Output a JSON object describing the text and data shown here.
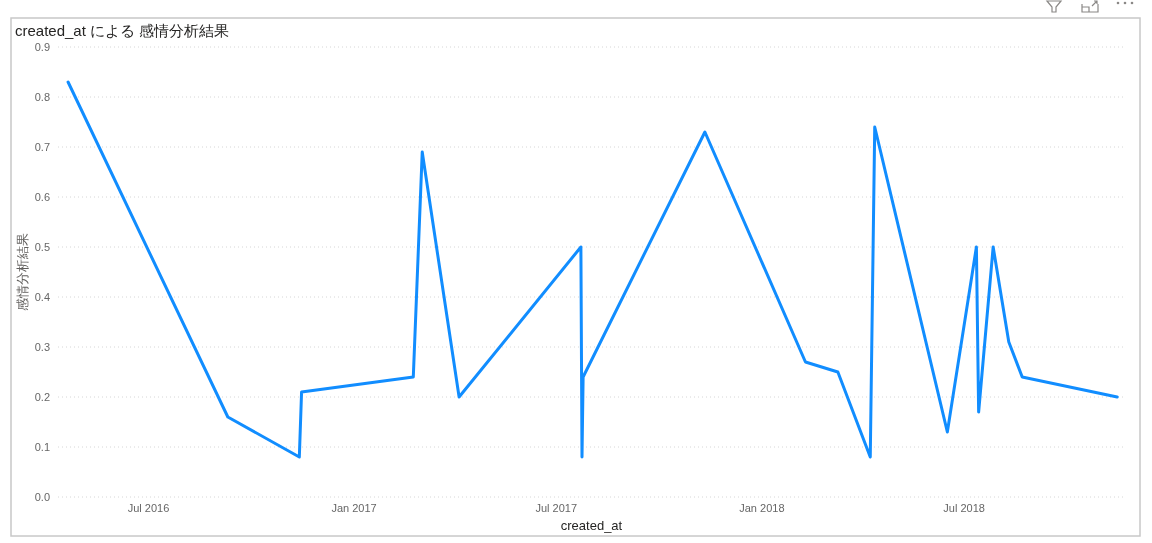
{
  "chart_data": {
    "type": "line",
    "title": "created_at による 感情分析結果",
    "xlabel": "created_at",
    "ylabel": "感情分析結果",
    "x": [
      "2016-04-20",
      "2016-09-10",
      "2016-11-13",
      "2016-11-15",
      "2017-02-23",
      "2017-03-03",
      "2017-04-05",
      "2017-07-23",
      "2017-07-24",
      "2017-07-25",
      "2017-11-11",
      "2018-02-09",
      "2018-03-10",
      "2018-04-08",
      "2018-04-12",
      "2018-06-16",
      "2018-07-12",
      "2018-07-14",
      "2018-07-27",
      "2018-08-10",
      "2018-08-22",
      "2018-11-15"
    ],
    "values": [
      0.83,
      0.16,
      0.08,
      0.21,
      0.24,
      0.69,
      0.2,
      0.5,
      0.08,
      0.24,
      0.73,
      0.27,
      0.25,
      0.08,
      0.74,
      0.13,
      0.5,
      0.17,
      0.5,
      0.31,
      0.24,
      0.2
    ],
    "color": "#118dff",
    "xlim": [
      "2016-04-11",
      "2018-11-22"
    ],
    "xticks": [
      {
        "value": "2016-07-01",
        "label": "Jul 2016"
      },
      {
        "value": "2017-01-01",
        "label": "Jan 2017"
      },
      {
        "value": "2017-07-01",
        "label": "Jul 2017"
      },
      {
        "value": "2018-01-01",
        "label": "Jan 2018"
      },
      {
        "value": "2018-07-01",
        "label": "Jul 2018"
      }
    ],
    "ylim": [
      0,
      0.9
    ],
    "yticks": [
      {
        "value": 0,
        "label": "0.0"
      },
      0.1,
      0.2,
      0.3,
      0.4,
      0.5,
      0.6,
      0.7,
      0.8,
      0.9
    ],
    "grid": "y"
  }
}
